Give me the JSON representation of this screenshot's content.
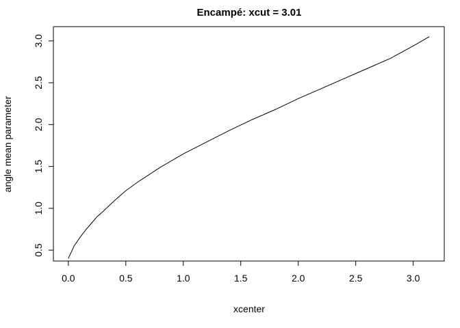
{
  "chart_data": {
    "type": "line",
    "title": "Encampé: xcut = 3.01",
    "xlabel": "xcenter",
    "ylabel": "angle mean parameter",
    "xlim": [
      -0.13,
      3.27
    ],
    "ylim": [
      0.37,
      3.17
    ],
    "xticks": [
      "0.0",
      "0.5",
      "1.0",
      "1.5",
      "2.0",
      "2.5",
      "3.0"
    ],
    "yticks": [
      "0.5",
      "1.0",
      "1.5",
      "2.0",
      "2.5",
      "3.0"
    ],
    "grid": false,
    "legend": "none",
    "series": [
      {
        "color": "#000000",
        "x": [
          0.0,
          0.05,
          0.1,
          0.15,
          0.2,
          0.25,
          0.3,
          0.4,
          0.5,
          0.6,
          0.7,
          0.8,
          0.9,
          1.0,
          1.2,
          1.4,
          1.6,
          1.8,
          2.0,
          2.2,
          2.4,
          2.6,
          2.8,
          3.0,
          3.14
        ],
        "y": [
          0.4,
          0.55,
          0.65,
          0.74,
          0.82,
          0.9,
          0.96,
          1.09,
          1.21,
          1.31,
          1.4,
          1.49,
          1.57,
          1.65,
          1.79,
          1.93,
          2.06,
          2.18,
          2.31,
          2.43,
          2.55,
          2.67,
          2.79,
          2.94,
          3.05
        ]
      }
    ]
  }
}
